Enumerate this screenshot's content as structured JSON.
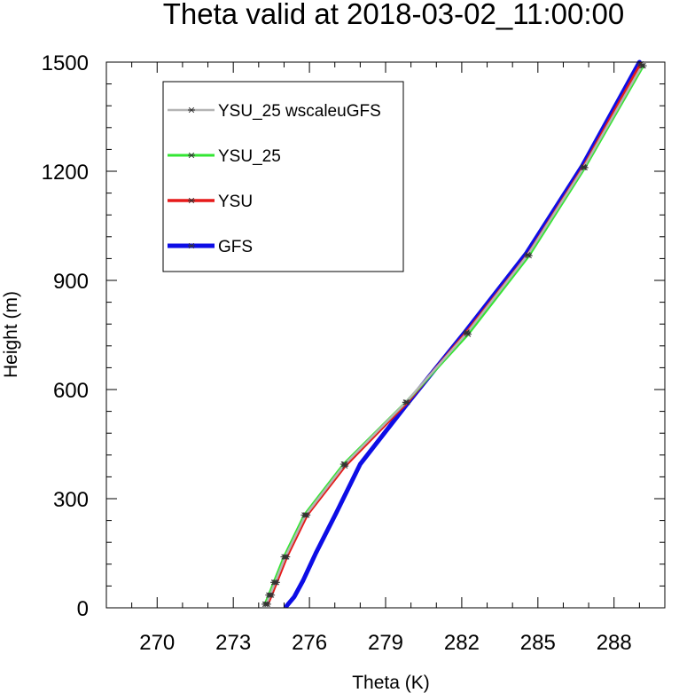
{
  "chart_data": {
    "type": "line",
    "title": "Theta valid at 2018-03-02_11:00:00",
    "xlabel": "Theta (K)",
    "ylabel": "Height (m)",
    "xlim": [
      268,
      290
    ],
    "ylim": [
      0,
      1500
    ],
    "xticks": [
      270,
      273,
      276,
      279,
      282,
      285,
      288
    ],
    "yticks": [
      0,
      300,
      600,
      900,
      1200,
      1500
    ],
    "x_minor_step": 1,
    "y_minor_step": 60,
    "legend_position": "top-left",
    "series": [
      {
        "name": "YSU_25 wscaleuGFS",
        "color": "#b4b4b4",
        "marker": "asterisk",
        "points": [
          [
            274.3,
            10
          ],
          [
            274.45,
            35
          ],
          [
            274.65,
            70
          ],
          [
            275.05,
            140
          ],
          [
            275.85,
            255
          ],
          [
            277.4,
            395
          ],
          [
            279.8,
            565
          ],
          [
            282.2,
            755
          ],
          [
            284.6,
            970
          ],
          [
            286.8,
            1210
          ],
          [
            289.1,
            1490
          ]
        ]
      },
      {
        "name": "YSU_25",
        "color": "#33e633",
        "marker": "asterisk",
        "points": [
          [
            274.25,
            10
          ],
          [
            274.4,
            35
          ],
          [
            274.6,
            70
          ],
          [
            275.0,
            140
          ],
          [
            275.8,
            255
          ],
          [
            277.35,
            395
          ],
          [
            279.8,
            565
          ],
          [
            282.25,
            752
          ],
          [
            284.65,
            968
          ],
          [
            286.85,
            1210
          ],
          [
            289.15,
            1490
          ]
        ]
      },
      {
        "name": "YSU",
        "color": "#e61a1a",
        "marker": "asterisk",
        "points": [
          [
            274.35,
            10
          ],
          [
            274.5,
            35
          ],
          [
            274.7,
            70
          ],
          [
            275.1,
            140
          ],
          [
            275.9,
            255
          ],
          [
            277.4,
            390
          ],
          [
            279.85,
            565
          ],
          [
            282.2,
            758
          ],
          [
            284.6,
            970
          ],
          [
            286.8,
            1212
          ],
          [
            289.05,
            1495
          ]
        ]
      },
      {
        "name": "GFS",
        "color": "#0d0de6",
        "marker": "none",
        "points": [
          [
            275.1,
            5
          ],
          [
            275.4,
            30
          ],
          [
            275.75,
            75
          ],
          [
            276.25,
            150
          ],
          [
            277.05,
            260
          ],
          [
            278.0,
            395
          ],
          [
            279.9,
            565
          ],
          [
            282.15,
            760
          ],
          [
            284.55,
            975
          ],
          [
            286.75,
            1215
          ],
          [
            289.0,
            1500
          ]
        ]
      }
    ]
  }
}
